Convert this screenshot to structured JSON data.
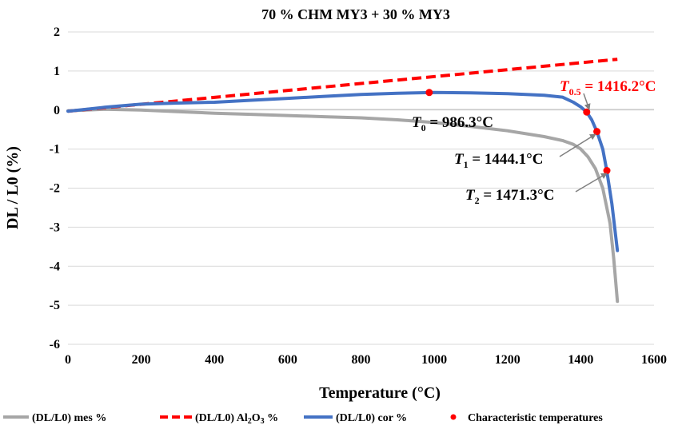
{
  "chart_data": {
    "type": "line",
    "title": "70 % CHM MY3 + 30 % MY3",
    "xlabel": "Temperature (°C)",
    "ylabel": "DL / L0 (%)",
    "xlim": [
      0,
      1600
    ],
    "ylim": [
      -6,
      2
    ],
    "x_ticks": [
      "0",
      "200",
      "400",
      "600",
      "800",
      "1000",
      "1200",
      "1400",
      "1600"
    ],
    "y_ticks": [
      "2",
      "1",
      "0",
      "-1",
      "-2",
      "-3",
      "-4",
      "-5",
      "-6"
    ],
    "grid": "horizontal",
    "legend_position": "bottom",
    "series": [
      {
        "name": "(DL/L0) mes %",
        "color": "#a6a6a6",
        "style": "solid",
        "x": [
          0,
          100,
          200,
          300,
          400,
          500,
          600,
          700,
          800,
          900,
          1000,
          1100,
          1200,
          1300,
          1350,
          1380,
          1400,
          1420,
          1440,
          1460,
          1480,
          1490,
          1500
        ],
        "y": [
          -0.02,
          0.02,
          0.0,
          -0.04,
          -0.08,
          -0.11,
          -0.14,
          -0.17,
          -0.2,
          -0.25,
          -0.32,
          -0.42,
          -0.53,
          -0.68,
          -0.78,
          -0.88,
          -1.0,
          -1.2,
          -1.5,
          -2.0,
          -2.9,
          -3.8,
          -4.9
        ]
      },
      {
        "name": "(DL/L0) Al2O3 %",
        "legend_label": {
          "pre": "(DL/L0) Al",
          "sub1": "2",
          "mid": "O",
          "sub2": "3",
          "post": " %"
        },
        "color": "#ff0000",
        "style": "dashed",
        "x": [
          0,
          1500
        ],
        "y": [
          -0.03,
          1.3
        ]
      },
      {
        "name": "(DL/L0) cor %",
        "color": "#4472c4",
        "style": "solid",
        "x": [
          0,
          100,
          200,
          300,
          400,
          500,
          600,
          700,
          800,
          900,
          1000,
          1100,
          1200,
          1300,
          1350,
          1380,
          1400,
          1416,
          1430,
          1444,
          1460,
          1471,
          1485,
          1500
        ],
        "y": [
          -0.03,
          0.07,
          0.15,
          0.18,
          0.2,
          0.25,
          0.3,
          0.35,
          0.4,
          0.43,
          0.45,
          0.44,
          0.42,
          0.38,
          0.33,
          0.2,
          0.08,
          -0.05,
          -0.25,
          -0.55,
          -1.0,
          -1.55,
          -2.4,
          -3.6
        ]
      }
    ],
    "points": {
      "name": "Characteristic temperatures",
      "color": "#ff0000",
      "items": [
        {
          "x": 986.3,
          "y": 0.45
        },
        {
          "x": 1416.2,
          "y": -0.05
        },
        {
          "x": 1444.1,
          "y": -0.55
        },
        {
          "x": 1471.3,
          "y": -1.55
        }
      ]
    },
    "annotations": [
      {
        "sym": "T",
        "sub": "0",
        "text": " = 986.3°C",
        "color": "#000000"
      },
      {
        "sym": "T",
        "sub": "0.5",
        "text": " = 1416.2°C",
        "color": "#ff0000"
      },
      {
        "sym": "T",
        "sub": "1",
        "text": " = 1444.1°C",
        "color": "#000000"
      },
      {
        "sym": "T",
        "sub": "2",
        "text": " = 1471.3°C",
        "color": "#000000"
      }
    ]
  }
}
